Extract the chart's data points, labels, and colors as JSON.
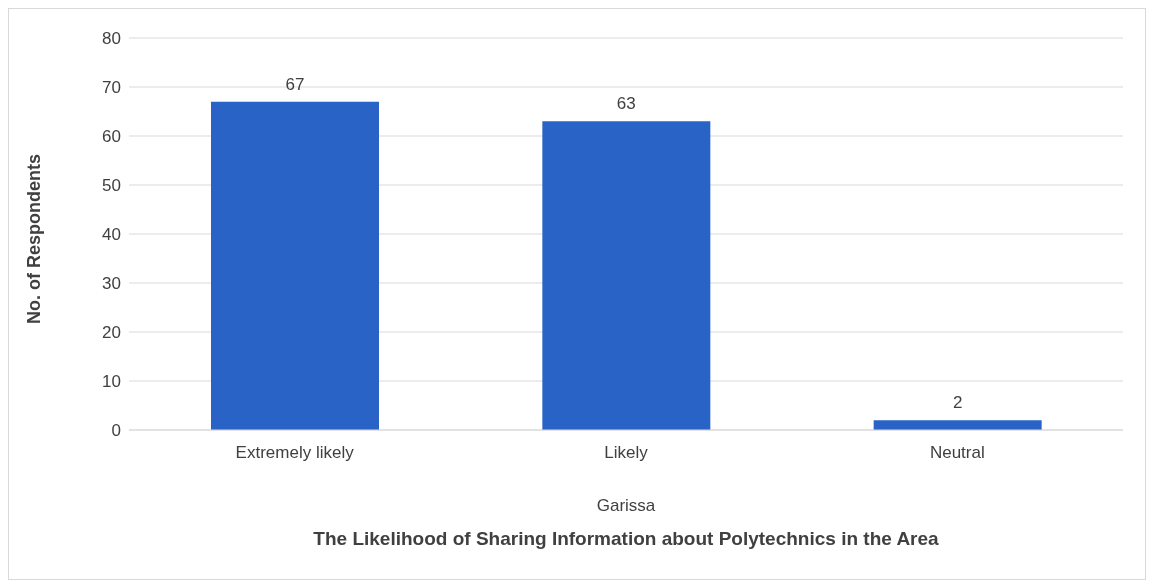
{
  "chart_data": {
    "type": "bar",
    "categories": [
      "Extremely likely",
      "Likely",
      "Neutral"
    ],
    "values": [
      67,
      63,
      2
    ],
    "color": "#2a63c6",
    "ylabel": "No. of Respondents",
    "xlabel": "The Likelihood of Sharing Information about Polytechnics in the Area",
    "annotations": [
      "Garissa"
    ],
    "ylim": [
      0,
      80
    ],
    "yticks": [
      0,
      10,
      20,
      30,
      40,
      50,
      60,
      70,
      80
    ],
    "grid": "y",
    "data_labels": true
  }
}
